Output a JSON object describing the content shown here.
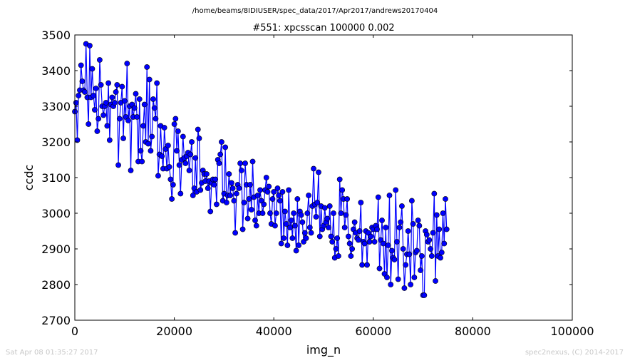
{
  "header": {
    "path": "/home/beams/8IDIUSER/spec_data/2017/Apr2017/andrews20170404"
  },
  "footer": {
    "timestamp": "Sat Apr 08 01:35:27 2017",
    "credit": "spec2nexus, (C) 2014-2017"
  },
  "chart_data": {
    "type": "line",
    "title": "#551: xpcsscan 100000 0.002",
    "xlabel": "img_n",
    "ylabel": "ccdc",
    "xlim": [
      0,
      100000
    ],
    "ylim": [
      2700,
      3500
    ],
    "xticks": [
      0,
      20000,
      40000,
      60000,
      80000,
      100000
    ],
    "xtick_labels": [
      "0",
      "20000",
      "40000",
      "60000",
      "80000",
      "100000"
    ],
    "yticks": [
      2700,
      2800,
      2900,
      3000,
      3100,
      3200,
      3300,
      3400,
      3500
    ],
    "ytick_labels": [
      "2700",
      "2800",
      "2900",
      "3000",
      "3100",
      "3200",
      "3300",
      "3400",
      "3500"
    ],
    "grid": false,
    "legend": "none",
    "color": "#0000ff",
    "marker": "circle",
    "series": [
      {
        "x_start": 0,
        "x_step": 250,
        "values": [
          3285,
          3310,
          3205,
          3330,
          3345,
          3415,
          3370,
          3345,
          3340,
          3475,
          3325,
          3250,
          3470,
          3325,
          3405,
          3330,
          3290,
          3350,
          3230,
          3265,
          3430,
          3360,
          3300,
          3275,
          3300,
          3310,
          3245,
          3365,
          3205,
          3305,
          3325,
          3300,
          3310,
          3340,
          3360,
          3135,
          3265,
          3310,
          3355,
          3210,
          3315,
          3270,
          3420,
          3260,
          3300,
          3120,
          3305,
          3270,
          3295,
          3335,
          3270,
          3145,
          3320,
          3175,
          3145,
          3245,
          3305,
          3200,
          3410,
          3195,
          3375,
          3175,
          3215,
          3320,
          3295,
          3265,
          3365,
          3105,
          3165,
          3245,
          3160,
          3125,
          3240,
          3180,
          3125,
          3190,
          3130,
          3095,
          3040,
          3080,
          3250,
          3265,
          3175,
          3230,
          3135,
          3055,
          3150,
          3215,
          3155,
          3140,
          3160,
          3170,
          3120,
          3165,
          3200,
          3050,
          3070,
          3155,
          3060,
          3235,
          3210,
          3065,
          3085,
          3120,
          3110,
          3090,
          3110,
          3070,
          3090,
          3005,
          3085,
          3095,
          3080,
          3095,
          3025,
          3150,
          3140,
          3165,
          3200,
          3035,
          3055,
          3185,
          3030,
          3050,
          3110,
          3050,
          3085,
          3070,
          3035,
          2945,
          3055,
          3080,
          3070,
          3140,
          3120,
          2955,
          3030,
          3140,
          3080,
          2985,
          3040,
          3080,
          3010,
          3145,
          3045,
          2980,
          2965,
          3050,
          3000,
          3065,
          3035,
          3000,
          3025,
          3065,
          3100,
          3060,
          3075,
          3000,
          2970,
          3040,
          3060,
          2965,
          3000,
          3070,
          3050,
          3035,
          2915,
          3060,
          2930,
          3005,
          2970,
          2910,
          3065,
          2960,
          2980,
          2930,
          3000,
          2965,
          2895,
          3040,
          2910,
          3005,
          2995,
          2975,
          2920,
          2945,
          2930,
          3000,
          3050,
          2960,
          2945,
          3020,
          3125,
          3025,
          2990,
          3030,
          3115,
          2935,
          3020,
          2955,
          2965,
          3015,
          2975,
          2985,
          2960,
          3020,
          2935,
          2920,
          3000,
          2875,
          2900,
          2930,
          2880,
          3095,
          3000,
          3065,
          3040,
          2960,
          2995,
          3040,
          2935,
          2915,
          2880,
          2900,
          2955,
          2975,
          2945,
          2930,
          2925,
          2950,
          3030,
          2855,
          2920,
          2915,
          2950,
          2855,
          2945,
          2920,
          2935,
          2960,
          2955,
          2920,
          2965,
          2955,
          3045,
          2845,
          2925,
          2980,
          2915,
          2830,
          2960,
          2820,
          2910,
          3050,
          2800,
          2895,
          2875,
          2870,
          3065,
          2920,
          2815,
          2960,
          2975,
          3020,
          2900,
          2790,
          2855,
          2885,
          2950,
          2885,
          2800,
          3035,
          2970,
          2820,
          2890,
          2895,
          2980,
          2965,
          2840,
          2880,
          2770,
          2770,
          2950,
          2940,
          2920,
          2925,
          2900,
          2880,
          2945,
          3055,
          2810,
          2995,
          2880,
          2955,
          2875,
          2890,
          3000,
          2915,
          3040,
          2955
        ]
      }
    ]
  }
}
